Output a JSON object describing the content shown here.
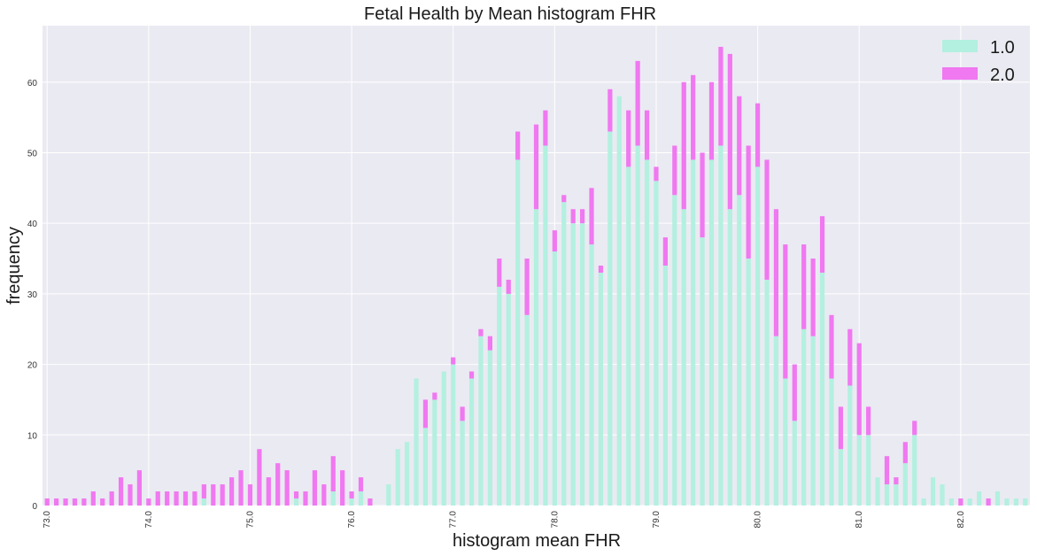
{
  "chart_data": {
    "type": "bar",
    "stacked": true,
    "title": "Fetal Health by Mean histogram FHR",
    "xlabel": "histogram mean FHR",
    "ylabel": "frequency",
    "ylim": [
      0,
      68
    ],
    "yticks": [
      0,
      10,
      20,
      30,
      40,
      50,
      60
    ],
    "xticks": [
      "73.0",
      "74.0",
      "75.0",
      "76.0",
      "77.0",
      "78.0",
      "79.0",
      "80.0",
      "81.0",
      "82.0",
      "83.0",
      "84.0"
    ],
    "xtick_interval": 11,
    "grid": true,
    "legend_position": "top-right",
    "categories_start": 73.0,
    "categories_step": 0.0909,
    "series": [
      {
        "name": "1.0",
        "color": "#b3f0e0",
        "values": [
          0,
          0,
          0,
          0,
          0,
          0,
          0,
          0,
          0,
          0,
          0,
          0,
          0,
          0,
          0,
          0,
          0,
          1,
          0,
          0,
          0,
          0,
          0,
          0,
          0,
          0,
          0,
          1,
          0,
          0,
          0,
          2,
          0,
          1,
          2,
          0,
          0,
          3,
          8,
          9,
          18,
          11,
          15,
          19,
          20,
          12,
          18,
          24,
          22,
          31,
          30,
          49,
          27,
          42,
          51,
          36,
          43,
          40,
          40,
          37,
          33,
          53,
          58,
          48,
          51,
          49,
          46,
          34,
          44,
          42,
          49,
          38,
          49,
          51,
          42,
          44,
          35,
          48,
          32,
          24,
          18,
          12,
          25,
          24,
          33,
          18,
          8,
          17,
          10,
          10,
          4,
          3,
          3,
          6,
          10,
          1,
          4,
          3,
          1,
          0,
          1,
          2,
          0,
          2,
          1,
          1,
          1
        ]
      },
      {
        "name": "2.0",
        "color": "#f078f0",
        "values": [
          1,
          1,
          1,
          1,
          1,
          2,
          1,
          2,
          4,
          3,
          5,
          1,
          2,
          2,
          2,
          2,
          2,
          2,
          3,
          3,
          4,
          5,
          3,
          8,
          4,
          6,
          5,
          1,
          2,
          5,
          3,
          5,
          5,
          1,
          2,
          1,
          0,
          0,
          0,
          0,
          0,
          4,
          1,
          0,
          1,
          2,
          1,
          1,
          2,
          4,
          2,
          4,
          8,
          12,
          5,
          3,
          1,
          2,
          2,
          8,
          1,
          6,
          0,
          8,
          12,
          7,
          2,
          4,
          7,
          18,
          12,
          12,
          11,
          14,
          22,
          14,
          16,
          9,
          17,
          18,
          19,
          8,
          12,
          11,
          8,
          9,
          6,
          8,
          13,
          4,
          0,
          4,
          1,
          3,
          2,
          0,
          0,
          0,
          0,
          1,
          0,
          0,
          1,
          0,
          0,
          0,
          0
        ]
      }
    ]
  }
}
